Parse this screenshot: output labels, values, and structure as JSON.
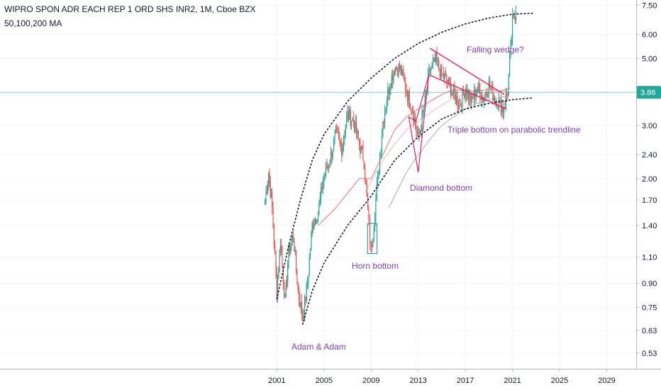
{
  "header": {
    "title": "WIPRO SPON ADR EACH REP 1 ORD SHS INR2, 1M, Cboe BZX",
    "indicator": "50,100,200 MA"
  },
  "colors": {
    "up": "#26a69a",
    "down": "#ef5350",
    "ma50": "#ef5350",
    "ma100": "#f4a6a6",
    "ma200": "#9598a1",
    "annotation_text": "#7b3fb3",
    "pattern_lines": "#e91e63",
    "price_line": "#26a69a",
    "trendline": "#131722"
  },
  "annotations": {
    "falling_wedge": "Falling wedge?",
    "triple_bottom": "Triple bottom on parabolic trendline",
    "diamond_bottom": "Diamond bottom",
    "horn_bottom": "Horn bottom",
    "adam_adam": "Adam & Adam"
  },
  "chart_data": {
    "type": "candlestick",
    "title": "WIPRO SPON ADR EACH REP 1 ORD SHS INR2, 1M, Cboe BZX",
    "y_scale": "log",
    "y_ticks": [
      "7.50",
      "6.00",
      "5.00",
      "3.86",
      "3.00",
      "2.40",
      "2.00",
      "1.70",
      "1.40",
      "1.10",
      "0.90",
      "0.75",
      "0.63",
      "0.53"
    ],
    "y_tick_values": [
      7.5,
      6.0,
      5.0,
      3.86,
      3.0,
      2.4,
      2.0,
      1.7,
      1.4,
      1.1,
      0.9,
      0.75,
      0.63,
      0.53
    ],
    "x_ticks": [
      "2001",
      "2005",
      "2009",
      "2013",
      "2017",
      "2021",
      "2025",
      "2029"
    ],
    "x_tick_values": [
      2001,
      2005,
      2009,
      2013,
      2017,
      2021,
      2025,
      2029
    ],
    "xlim": [
      1977.5,
      2031.5
    ],
    "ylim": [
      0.47,
      7.8
    ],
    "last_price": 3.86,
    "anchors": [
      [
        2000.0,
        1.7
      ],
      [
        2000.3,
        2.1
      ],
      [
        2000.6,
        1.6
      ],
      [
        2001.0,
        0.85
      ],
      [
        2001.3,
        1.25
      ],
      [
        2001.7,
        0.78
      ],
      [
        2002.0,
        1.15
      ],
      [
        2002.4,
        1.3
      ],
      [
        2002.8,
        0.85
      ],
      [
        2003.2,
        0.7
      ],
      [
        2003.6,
        0.9
      ],
      [
        2004.0,
        1.4
      ],
      [
        2004.5,
        1.55
      ],
      [
        2005.0,
        2.05
      ],
      [
        2005.5,
        2.3
      ],
      [
        2006.0,
        2.8
      ],
      [
        2006.5,
        2.55
      ],
      [
        2007.0,
        3.25
      ],
      [
        2007.5,
        3.1
      ],
      [
        2008.0,
        2.6
      ],
      [
        2008.4,
        2.3
      ],
      [
        2008.8,
        1.4
      ],
      [
        2009.0,
        1.15
      ],
      [
        2009.4,
        1.7
      ],
      [
        2010.0,
        3.1
      ],
      [
        2010.5,
        4.0
      ],
      [
        2011.0,
        4.7
      ],
      [
        2011.5,
        4.6
      ],
      [
        2012.0,
        3.9
      ],
      [
        2012.5,
        3.4
      ],
      [
        2013.0,
        2.7
      ],
      [
        2013.4,
        3.3
      ],
      [
        2014.0,
        4.6
      ],
      [
        2014.5,
        4.9
      ],
      [
        2015.0,
        4.4
      ],
      [
        2015.5,
        4.2
      ],
      [
        2016.0,
        3.8
      ],
      [
        2016.5,
        3.5
      ],
      [
        2017.0,
        4.0
      ],
      [
        2017.5,
        3.6
      ],
      [
        2018.0,
        4.0
      ],
      [
        2018.5,
        3.7
      ],
      [
        2019.0,
        4.1
      ],
      [
        2019.5,
        3.7
      ],
      [
        2020.2,
        3.4
      ],
      [
        2020.6,
        3.9
      ],
      [
        2021.0,
        6.6
      ],
      [
        2021.3,
        7.2
      ]
    ],
    "ma50": [
      [
        2004.5,
        1.4
      ],
      [
        2006.0,
        1.6
      ],
      [
        2008.0,
        2.0
      ],
      [
        2009.0,
        2.0
      ],
      [
        2010.0,
        2.4
      ],
      [
        2011.0,
        2.9
      ],
      [
        2012.0,
        3.2
      ],
      [
        2013.0,
        3.4
      ],
      [
        2014.0,
        3.6
      ],
      [
        2015.0,
        3.8
      ],
      [
        2016.0,
        3.95
      ],
      [
        2017.0,
        3.9
      ],
      [
        2018.0,
        3.9
      ],
      [
        2019.0,
        3.95
      ],
      [
        2020.0,
        3.9
      ],
      [
        2020.8,
        4.0
      ]
    ],
    "ma100": [
      [
        2008.5,
        1.8
      ],
      [
        2010.0,
        2.3
      ],
      [
        2011.0,
        2.6
      ],
      [
        2012.0,
        2.9
      ],
      [
        2013.0,
        3.1
      ],
      [
        2014.0,
        3.3
      ],
      [
        2015.0,
        3.5
      ],
      [
        2016.0,
        3.7
      ],
      [
        2017.0,
        3.8
      ],
      [
        2018.0,
        3.85
      ],
      [
        2019.0,
        3.85
      ],
      [
        2020.5,
        3.9
      ]
    ],
    "ma200": [
      [
        2010.5,
        1.6
      ],
      [
        2012.0,
        2.1
      ],
      [
        2013.0,
        2.4
      ],
      [
        2014.0,
        2.7
      ],
      [
        2015.0,
        3.0
      ],
      [
        2016.0,
        3.2
      ],
      [
        2017.0,
        3.4
      ],
      [
        2018.0,
        3.55
      ],
      [
        2019.0,
        3.65
      ],
      [
        2020.5,
        3.75
      ]
    ],
    "upper_trendline": [
      [
        2001.0,
        0.8
      ],
      [
        2002.0,
        1.2
      ],
      [
        2003.0,
        1.7
      ],
      [
        2004.0,
        2.3
      ],
      [
        2005.0,
        2.8
      ],
      [
        2007.0,
        3.6
      ],
      [
        2009.0,
        4.3
      ],
      [
        2011.0,
        5.0
      ],
      [
        2013.0,
        5.6
      ],
      [
        2015.0,
        6.1
      ],
      [
        2017.0,
        6.5
      ],
      [
        2019.0,
        6.8
      ],
      [
        2021.0,
        7.0
      ],
      [
        2022.7,
        7.05
      ]
    ],
    "lower_trendline": [
      [
        2003.2,
        0.66
      ],
      [
        2004.0,
        0.85
      ],
      [
        2005.0,
        1.05
      ],
      [
        2007.0,
        1.4
      ],
      [
        2009.0,
        1.75
      ],
      [
        2011.0,
        2.3
      ],
      [
        2013.0,
        2.75
      ],
      [
        2015.0,
        3.15
      ],
      [
        2017.0,
        3.4
      ],
      [
        2019.0,
        3.55
      ],
      [
        2021.0,
        3.65
      ],
      [
        2022.7,
        3.7
      ]
    ],
    "wedge_upper": [
      [
        2014.0,
        5.4
      ],
      [
        2020.3,
        3.8
      ]
    ],
    "wedge_lower": [
      [
        2014.0,
        4.4
      ],
      [
        2020.5,
        3.4
      ]
    ],
    "diamond": [
      [
        2012.8,
        3.1
      ],
      [
        2013.9,
        4.4
      ],
      [
        2013.0,
        2.1
      ],
      [
        2012.2,
        3.2
      ]
    ],
    "horn_box": [
      [
        2008.7,
        1.42
      ],
      [
        2009.5,
        1.13
      ]
    ]
  }
}
